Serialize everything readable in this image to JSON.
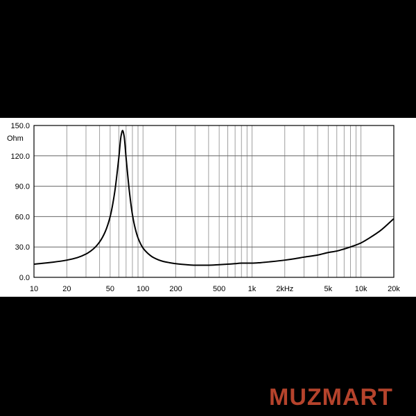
{
  "chart_data": {
    "type": "line",
    "x_scale": "log",
    "y_unit": "Ohm",
    "xlim": [
      10,
      20000
    ],
    "ylim": [
      0,
      150
    ],
    "y_ticks": [
      0,
      30,
      60,
      90,
      120,
      150
    ],
    "y_tick_labels": [
      "0.0",
      "30.0",
      "60.0",
      "90.0",
      "120.0",
      "150.0"
    ],
    "x_ticks": [
      10,
      20,
      50,
      100,
      200,
      500,
      1000,
      2000,
      5000,
      10000,
      20000
    ],
    "x_tick_labels": [
      "10",
      "20",
      "50",
      "100",
      "200",
      "500",
      "1k",
      "2kHz",
      "5k",
      "10k",
      "20k"
    ],
    "grid": true,
    "line_color": "#000000",
    "x": [
      10,
      15,
      20,
      25,
      30,
      35,
      40,
      45,
      50,
      55,
      60,
      63,
      65,
      67,
      70,
      75,
      80,
      85,
      90,
      100,
      110,
      125,
      150,
      175,
      200,
      250,
      300,
      400,
      500,
      600,
      700,
      800,
      1000,
      1200,
      1500,
      2000,
      2500,
      3000,
      4000,
      5000,
      6000,
      7000,
      8000,
      10000,
      12000,
      15000,
      20000
    ],
    "y": [
      13,
      15,
      17,
      19.5,
      23,
      28,
      35,
      45,
      60,
      84,
      118,
      140,
      145,
      140,
      118,
      85,
      62,
      48,
      39,
      29,
      24,
      19.5,
      16,
      14.5,
      13.5,
      12.5,
      12,
      12,
      12.5,
      13,
      13.5,
      14,
      14,
      14.5,
      15.5,
      17,
      18.5,
      20,
      22,
      24.5,
      26,
      28,
      30,
      34,
      39,
      46,
      58
    ]
  },
  "watermark": {
    "text": "MUZMART",
    "color": "#b5432c"
  }
}
